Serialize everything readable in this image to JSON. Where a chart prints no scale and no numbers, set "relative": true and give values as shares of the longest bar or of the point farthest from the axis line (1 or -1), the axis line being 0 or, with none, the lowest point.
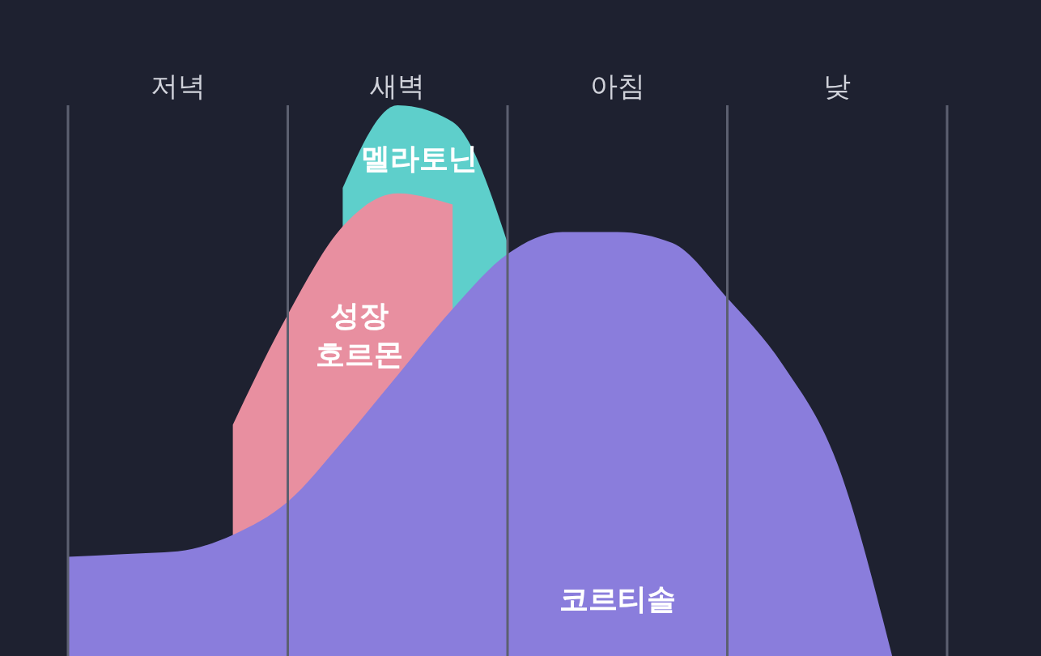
{
  "chart_data": {
    "type": "area",
    "relative": true,
    "categories": [
      null,
      null,
      "저녁",
      null,
      null,
      null,
      "새벽",
      null,
      null,
      null,
      "아침",
      null,
      null,
      null,
      "낮",
      null,
      null
    ],
    "grid": "x",
    "series": [
      {
        "name": "멜라토닌",
        "color": "#5ecfcb",
        "values": [
          null,
          null,
          null,
          null,
          null,
          0.85,
          1.0,
          0.97,
          0.75,
          null,
          null,
          null,
          null,
          null,
          null,
          null,
          null
        ]
      },
      {
        "name": "성장 호르몬",
        "color": "#e88fa0",
        "values": [
          null,
          null,
          null,
          0.42,
          0.62,
          0.78,
          0.84,
          0.82,
          null,
          null,
          null,
          null,
          null,
          null,
          null,
          null,
          null
        ]
      },
      {
        "name": "코르티솔",
        "color": "#8a7ddc",
        "values": [
          0.18,
          0.185,
          0.19,
          0.22,
          0.28,
          0.39,
          0.51,
          0.63,
          0.73,
          0.77,
          0.77,
          0.75,
          0.65,
          0.53,
          0.35,
          0,
          null
        ]
      }
    ]
  }
}
